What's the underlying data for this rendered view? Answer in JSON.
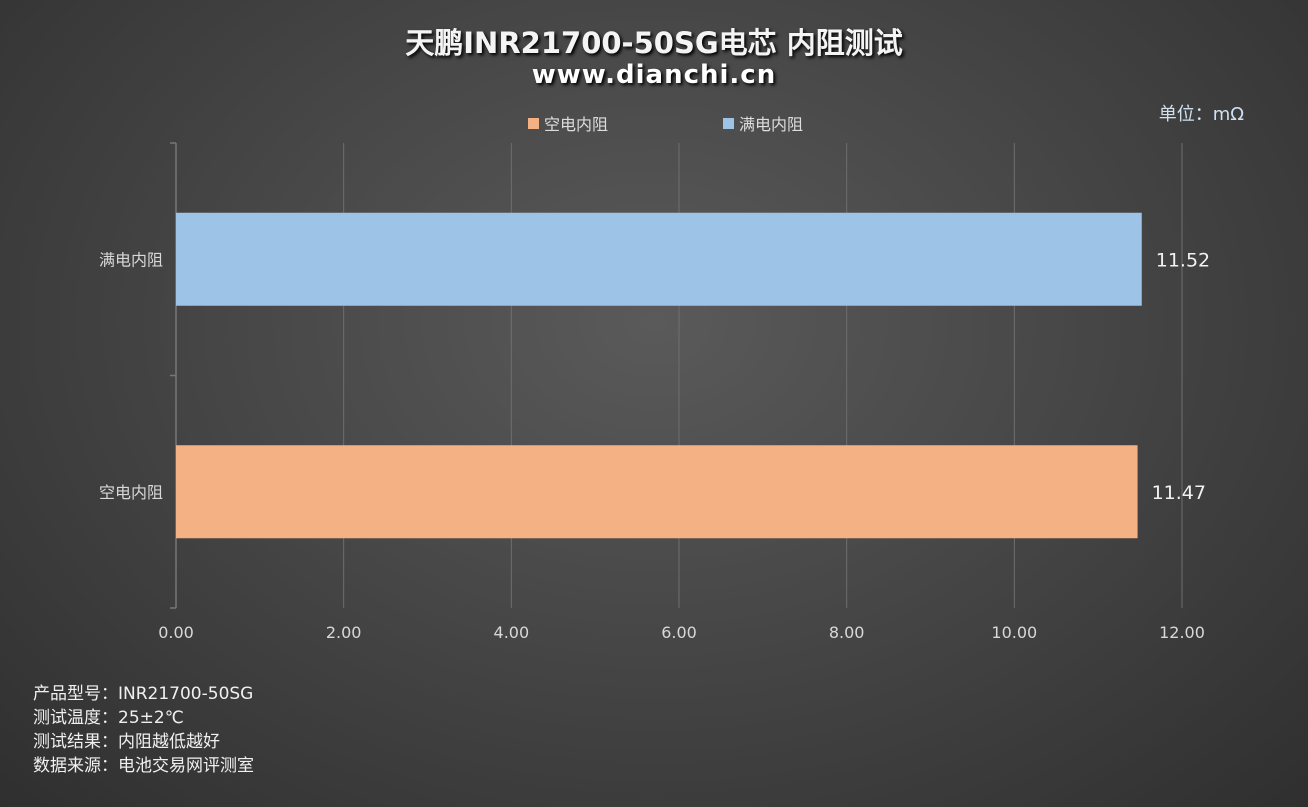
{
  "chart_data": {
    "type": "bar",
    "orientation": "horizontal",
    "title": "天鹏INR21700-50SG电芯 内阻测试",
    "subtitle": "www.dianchi.cn",
    "unit": "单位：mΩ",
    "categories": [
      "满电内阻",
      "空电内阻"
    ],
    "values": [
      11.52,
      11.47
    ],
    "value_labels": [
      "11.52",
      "11.47"
    ],
    "colors": [
      "#9dc3e6",
      "#f4b183"
    ],
    "legend": [
      {
        "name": "空电内阻",
        "color": "#f4b183"
      },
      {
        "name": "满电内阻",
        "color": "#9dc3e6"
      }
    ],
    "legend_position": "top",
    "xlim": [
      0,
      12
    ],
    "xticks": [
      "0.00",
      "2.00",
      "4.00",
      "6.00",
      "8.00",
      "10.00",
      "12.00"
    ],
    "grid": true
  },
  "notes": [
    "产品型号：INR21700-50SG",
    "测试温度：25±2℃",
    "测试结果：内阻越低越好",
    "数据来源：电池交易网评测室"
  ]
}
